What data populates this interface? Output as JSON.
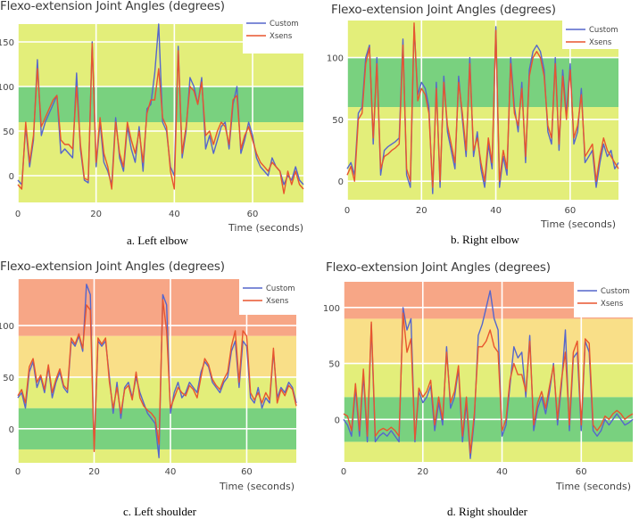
{
  "figure": {
    "legend_labels": [
      "Custom",
      "Xsens"
    ],
    "colors": {
      "custom": "#5566cc",
      "xsens": "#e8552e",
      "zone_green": "#79d17f",
      "zone_yellow": "#e3ee7a",
      "zone_orange": "#f9df88",
      "zone_red": "#f7a686",
      "grid": "#ffffff"
    }
  },
  "chart_data": [
    {
      "id": "a",
      "type": "line",
      "title": "Flexo-extension Joint Angles (degrees)",
      "caption": "a. Left elbow",
      "xlabel": "Time (seconds)",
      "ylabel": "",
      "xlim": [
        0,
        73
      ],
      "ylim": [
        -30,
        170
      ],
      "xticks": [
        0,
        20,
        40,
        60
      ],
      "xtick_labels": [
        "0",
        "20",
        "40",
        "60"
      ],
      "yticks": [
        0,
        50,
        100,
        150
      ],
      "ytick_labels": [
        "0",
        "50",
        "100",
        "150"
      ],
      "grid": true,
      "legend": "top-right",
      "zones": [
        {
          "from": -30,
          "to": 60,
          "color": "zone_yellow"
        },
        {
          "from": 60,
          "to": 100,
          "color": "zone_green"
        },
        {
          "from": 100,
          "to": 170,
          "color": "zone_yellow"
        }
      ],
      "x": [
        0,
        1,
        2,
        3,
        4,
        5,
        6,
        7,
        8,
        9,
        10,
        11,
        12,
        13,
        14,
        15,
        16,
        17,
        18,
        19,
        20,
        21,
        22,
        23,
        24,
        25,
        26,
        27,
        28,
        29,
        30,
        31,
        32,
        33,
        34,
        35,
        36,
        37,
        38,
        39,
        40,
        41,
        42,
        43,
        44,
        45,
        46,
        47,
        48,
        49,
        50,
        51,
        52,
        53,
        54,
        55,
        56,
        57,
        58,
        59,
        60,
        61,
        62,
        63,
        64,
        65,
        66,
        67,
        68,
        69,
        70,
        71,
        72,
        73
      ],
      "series": [
        {
          "name": "Custom",
          "values": [
            -5,
            -10,
            55,
            10,
            40,
            130,
            45,
            60,
            70,
            80,
            90,
            25,
            30,
            25,
            20,
            115,
            30,
            -5,
            -8,
            150,
            10,
            60,
            15,
            5,
            -10,
            65,
            20,
            5,
            55,
            30,
            15,
            55,
            5,
            75,
            80,
            115,
            170,
            60,
            50,
            10,
            0,
            145,
            20,
            50,
            110,
            100,
            80,
            110,
            30,
            45,
            25,
            40,
            55,
            60,
            30,
            80,
            100,
            25,
            40,
            60,
            45,
            20,
            10,
            5,
            0,
            20,
            10,
            5,
            -10,
            0,
            -5,
            10,
            -5,
            -10
          ]
        },
        {
          "name": "Xsens",
          "values": [
            -10,
            -15,
            60,
            15,
            45,
            120,
            55,
            65,
            75,
            85,
            90,
            40,
            35,
            35,
            30,
            100,
            35,
            -3,
            -5,
            148,
            15,
            65,
            25,
            10,
            -15,
            60,
            25,
            10,
            60,
            40,
            25,
            50,
            15,
            70,
            85,
            85,
            120,
            65,
            55,
            5,
            -15,
            140,
            25,
            55,
            100,
            95,
            80,
            105,
            45,
            50,
            35,
            50,
            60,
            55,
            35,
            85,
            90,
            30,
            45,
            55,
            40,
            25,
            15,
            10,
            5,
            15,
            10,
            5,
            -20,
            5,
            -10,
            5,
            -10,
            -15
          ]
        }
      ]
    },
    {
      "id": "b",
      "type": "line",
      "title": "Flexo-extension Joint Angles (degrees)",
      "caption": "b. Right elbow",
      "xlabel": "Time (seconds)",
      "ylabel": "",
      "xlim": [
        0,
        73
      ],
      "ylim": [
        -15,
        130
      ],
      "xticks": [
        0,
        20,
        40,
        60
      ],
      "xtick_labels": [
        "0",
        "20",
        "40",
        "60"
      ],
      "yticks": [
        0,
        50,
        100
      ],
      "ytick_labels": [
        "0",
        "50",
        "100"
      ],
      "grid": true,
      "legend": "top-right",
      "zones": [
        {
          "from": -15,
          "to": 60,
          "color": "zone_yellow"
        },
        {
          "from": 60,
          "to": 100,
          "color": "zone_green"
        },
        {
          "from": 100,
          "to": 130,
          "color": "zone_yellow"
        }
      ],
      "x": [
        0,
        1,
        2,
        3,
        4,
        5,
        6,
        7,
        8,
        9,
        10,
        11,
        12,
        13,
        14,
        15,
        16,
        17,
        18,
        19,
        20,
        21,
        22,
        23,
        24,
        25,
        26,
        27,
        28,
        29,
        30,
        31,
        32,
        33,
        34,
        35,
        36,
        37,
        38,
        39,
        40,
        41,
        42,
        43,
        44,
        45,
        46,
        47,
        48,
        49,
        50,
        51,
        52,
        53,
        54,
        55,
        56,
        57,
        58,
        59,
        60,
        61,
        62,
        63,
        64,
        65,
        66,
        67,
        68,
        69,
        70,
        71,
        72,
        73
      ],
      "series": [
        {
          "name": "Custom",
          "values": [
            10,
            15,
            5,
            55,
            60,
            100,
            110,
            30,
            100,
            5,
            25,
            28,
            30,
            32,
            35,
            115,
            5,
            -5,
            125,
            70,
            80,
            75,
            60,
            -10,
            80,
            -5,
            85,
            40,
            25,
            10,
            85,
            50,
            20,
            100,
            20,
            40,
            10,
            -5,
            30,
            10,
            125,
            -5,
            20,
            5,
            100,
            60,
            40,
            80,
            15,
            90,
            105,
            110,
            105,
            90,
            40,
            30,
            100,
            25,
            90,
            55,
            95,
            30,
            40,
            75,
            15,
            20,
            25,
            -5,
            15,
            30,
            20,
            25,
            10,
            15
          ]
        },
        {
          "name": "Xsens",
          "values": [
            5,
            12,
            0,
            50,
            55,
            95,
            108,
            35,
            95,
            10,
            20,
            22,
            25,
            27,
            30,
            110,
            10,
            0,
            128,
            65,
            75,
            70,
            55,
            -5,
            75,
            0,
            80,
            45,
            30,
            15,
            80,
            55,
            25,
            95,
            25,
            35,
            15,
            0,
            35,
            15,
            122,
            0,
            25,
            10,
            95,
            55,
            45,
            75,
            20,
            85,
            100,
            105,
            100,
            85,
            45,
            35,
            95,
            30,
            85,
            50,
            90,
            35,
            45,
            70,
            20,
            25,
            30,
            0,
            20,
            35,
            25,
            20,
            15,
            10
          ]
        }
      ]
    },
    {
      "id": "c",
      "type": "line",
      "title": "Flexo-extension Joint Angles (degrees)",
      "caption": "c. Left shoulder",
      "xlabel": "Time (seconds)",
      "ylabel": "",
      "xlim": [
        0,
        73
      ],
      "ylim": [
        -33,
        145
      ],
      "xticks": [
        0,
        20,
        40,
        60
      ],
      "xtick_labels": [
        "0",
        "20",
        "40",
        "60"
      ],
      "yticks": [
        0,
        50,
        100
      ],
      "ytick_labels": [
        "0",
        "50",
        "100"
      ],
      "grid": true,
      "legend": "top-right",
      "zones": [
        {
          "from": -33,
          "to": -20,
          "color": "zone_yellow"
        },
        {
          "from": -20,
          "to": 20,
          "color": "zone_green"
        },
        {
          "from": 20,
          "to": 50,
          "color": "zone_yellow"
        },
        {
          "from": 50,
          "to": 90,
          "color": "zone_orange"
        },
        {
          "from": 90,
          "to": 145,
          "color": "zone_red"
        }
      ],
      "x": [
        0,
        1,
        2,
        3,
        4,
        5,
        6,
        7,
        8,
        9,
        10,
        11,
        12,
        13,
        14,
        15,
        16,
        17,
        18,
        19,
        20,
        21,
        22,
        23,
        24,
        25,
        26,
        27,
        28,
        29,
        30,
        31,
        32,
        33,
        34,
        35,
        36,
        37,
        38,
        39,
        40,
        41,
        42,
        43,
        44,
        45,
        46,
        47,
        48,
        49,
        50,
        51,
        52,
        53,
        54,
        55,
        56,
        57,
        58,
        59,
        60,
        61,
        62,
        63,
        64,
        65,
        66,
        67,
        68,
        69,
        70,
        71,
        72,
        73
      ],
      "series": [
        {
          "name": "Custom",
          "values": [
            30,
            35,
            20,
            55,
            65,
            40,
            50,
            35,
            60,
            30,
            45,
            55,
            40,
            35,
            85,
            80,
            90,
            75,
            140,
            130,
            -20,
            85,
            80,
            85,
            50,
            15,
            45,
            10,
            40,
            45,
            30,
            50,
            35,
            25,
            15,
            10,
            5,
            -28,
            130,
            120,
            15,
            35,
            45,
            30,
            35,
            45,
            40,
            35,
            55,
            65,
            60,
            45,
            40,
            35,
            45,
            50,
            75,
            85,
            40,
            85,
            80,
            30,
            25,
            40,
            20,
            30,
            25,
            75,
            30,
            40,
            35,
            45,
            40,
            25
          ]
        },
        {
          "name": "Xsens",
          "values": [
            32,
            38,
            25,
            60,
            68,
            45,
            52,
            38,
            62,
            35,
            48,
            58,
            42,
            38,
            88,
            82,
            92,
            78,
            120,
            115,
            -22,
            88,
            82,
            88,
            45,
            20,
            40,
            15,
            38,
            42,
            28,
            55,
            30,
            22,
            18,
            15,
            10,
            -15,
            125,
            95,
            20,
            30,
            40,
            35,
            32,
            42,
            38,
            30,
            50,
            68,
            62,
            48,
            42,
            38,
            48,
            55,
            80,
            95,
            45,
            95,
            90,
            35,
            28,
            35,
            25,
            35,
            28,
            78,
            25,
            38,
            32,
            42,
            38,
            22
          ]
        }
      ]
    },
    {
      "id": "d",
      "type": "line",
      "title": "Flexo-extension Joint Angles (degrees)",
      "caption": "d. Right shoulder",
      "xlabel": "Time (seconds)",
      "ylabel": "",
      "xlim": [
        0,
        73
      ],
      "ylim": [
        -38,
        123
      ],
      "xticks": [
        0,
        20,
        40,
        60
      ],
      "xtick_labels": [
        "0",
        "20",
        "40",
        "60"
      ],
      "yticks": [
        0,
        50,
        100
      ],
      "ytick_labels": [
        "0",
        "50",
        "100"
      ],
      "grid": true,
      "legend": "top-right",
      "zones": [
        {
          "from": -38,
          "to": -20,
          "color": "zone_yellow"
        },
        {
          "from": -20,
          "to": 20,
          "color": "zone_green"
        },
        {
          "from": 20,
          "to": 50,
          "color": "zone_yellow"
        },
        {
          "from": 50,
          "to": 90,
          "color": "zone_orange"
        },
        {
          "from": 90,
          "to": 123,
          "color": "zone_red"
        }
      ],
      "x": [
        0,
        1,
        2,
        3,
        4,
        5,
        6,
        7,
        8,
        9,
        10,
        11,
        12,
        13,
        14,
        15,
        16,
        17,
        18,
        19,
        20,
        21,
        22,
        23,
        24,
        25,
        26,
        27,
        28,
        29,
        30,
        31,
        32,
        33,
        34,
        35,
        36,
        37,
        38,
        39,
        40,
        41,
        42,
        43,
        44,
        45,
        46,
        47,
        48,
        49,
        50,
        51,
        52,
        53,
        54,
        55,
        56,
        57,
        58,
        59,
        60,
        61,
        62,
        63,
        64,
        65,
        66,
        67,
        68,
        69,
        70,
        71,
        72,
        73
      ],
      "series": [
        {
          "name": "Custom",
          "values": [
            0,
            -5,
            -15,
            28,
            -15,
            40,
            -20,
            85,
            -20,
            -15,
            -12,
            -15,
            -10,
            -15,
            -20,
            100,
            80,
            90,
            -20,
            25,
            15,
            20,
            30,
            -10,
            15,
            -5,
            65,
            10,
            20,
            45,
            -20,
            15,
            -35,
            0,
            75,
            85,
            100,
            115,
            90,
            80,
            -15,
            -5,
            30,
            65,
            55,
            60,
            20,
            75,
            -10,
            10,
            20,
            5,
            25,
            50,
            -5,
            30,
            80,
            -10,
            55,
            60,
            -10,
            70,
            60,
            -10,
            -15,
            -10,
            0,
            -5,
            0,
            5,
            0,
            -5,
            -3,
            0
          ]
        },
        {
          "name": "Xsens",
          "values": [
            5,
            3,
            -10,
            32,
            -10,
            45,
            -15,
            87,
            -15,
            -10,
            -8,
            -10,
            -7,
            -10,
            -15,
            95,
            60,
            72,
            -18,
            28,
            20,
            25,
            35,
            -5,
            20,
            0,
            60,
            15,
            25,
            48,
            -15,
            20,
            -30,
            5,
            65,
            65,
            70,
            80,
            65,
            60,
            -10,
            0,
            35,
            50,
            40,
            40,
            25,
            70,
            -5,
            15,
            25,
            10,
            30,
            48,
            0,
            35,
            60,
            -5,
            60,
            70,
            -5,
            72,
            68,
            -5,
            -10,
            -5,
            3,
            0,
            5,
            8,
            5,
            0,
            3,
            5
          ]
        }
      ]
    }
  ]
}
